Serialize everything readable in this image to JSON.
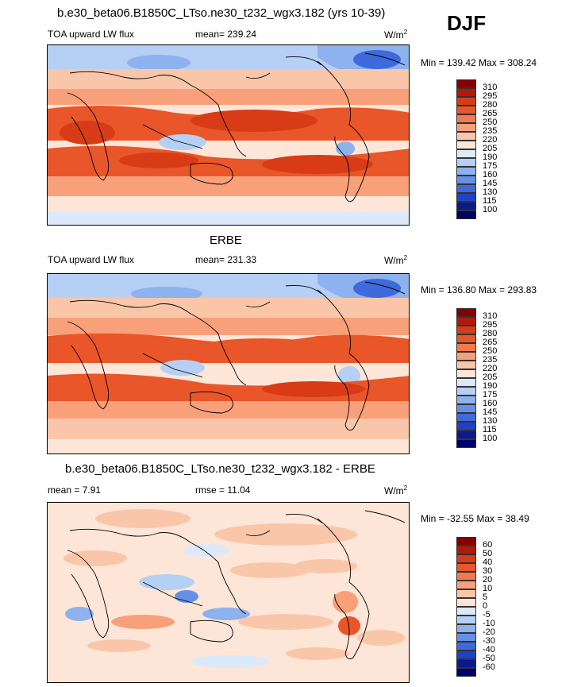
{
  "season": "DJF",
  "panels": [
    {
      "id": "model",
      "title": "b.e30_beta06.B1850C_LTso.ne30_t232_wgx3.182 (yrs 10-39)",
      "left_label": "TOA upward LW flux",
      "center_label": "mean= 239.24",
      "units": "W/m",
      "units_sup": "2",
      "minmax": "Min = 139.42 Max = 308.24",
      "colorbar_levels": [
        "310",
        "295",
        "280",
        "265",
        "250",
        "235",
        "220",
        "205",
        "190",
        "175",
        "160",
        "145",
        "130",
        "115",
        "100"
      ]
    },
    {
      "id": "obs",
      "title": "ERBE",
      "left_label": "TOA upward LW flux",
      "center_label": "mean= 231.33",
      "units": "W/m",
      "units_sup": "2",
      "minmax": "Min = 136.80 Max = 293.83",
      "colorbar_levels": [
        "310",
        "295",
        "280",
        "265",
        "250",
        "235",
        "220",
        "205",
        "190",
        "175",
        "160",
        "145",
        "130",
        "115",
        "100"
      ]
    },
    {
      "id": "diff",
      "title": "b.e30_beta06.B1850C_LTso.ne30_t232_wgx3.182 - ERBE",
      "left_label": "mean =   7.91",
      "center_label": "rmse =  11.04",
      "units": "W/m",
      "units_sup": "2",
      "minmax": "Min = -32.55 Max =  38.49",
      "colorbar_levels": [
        "60",
        "50",
        "40",
        "30",
        "20",
        "10",
        "5",
        "0",
        "-5",
        "-10",
        "-20",
        "-30",
        "-40",
        "-50",
        "-60"
      ]
    }
  ],
  "colors": {
    "abs_scale": [
      "#870000",
      "#b01a0a",
      "#d73c17",
      "#e8562a",
      "#f27a4e",
      "#f7a07a",
      "#fac6aa",
      "#fde6d8",
      "#dbe9fb",
      "#b5cff5",
      "#8db2ee",
      "#6690e6",
      "#3f6adc",
      "#1f41c8",
      "#0a1a8c",
      "#00006b"
    ],
    "diff_scale": [
      "#870000",
      "#b01a0a",
      "#d73c17",
      "#e8562a",
      "#f27a4e",
      "#f7a07a",
      "#fac6aa",
      "#fde6d8",
      "#dbe9fb",
      "#b5cff5",
      "#8db2ee",
      "#6690e6",
      "#3f6adc",
      "#1f41c8",
      "#0a1a8c",
      "#00006b"
    ]
  }
}
